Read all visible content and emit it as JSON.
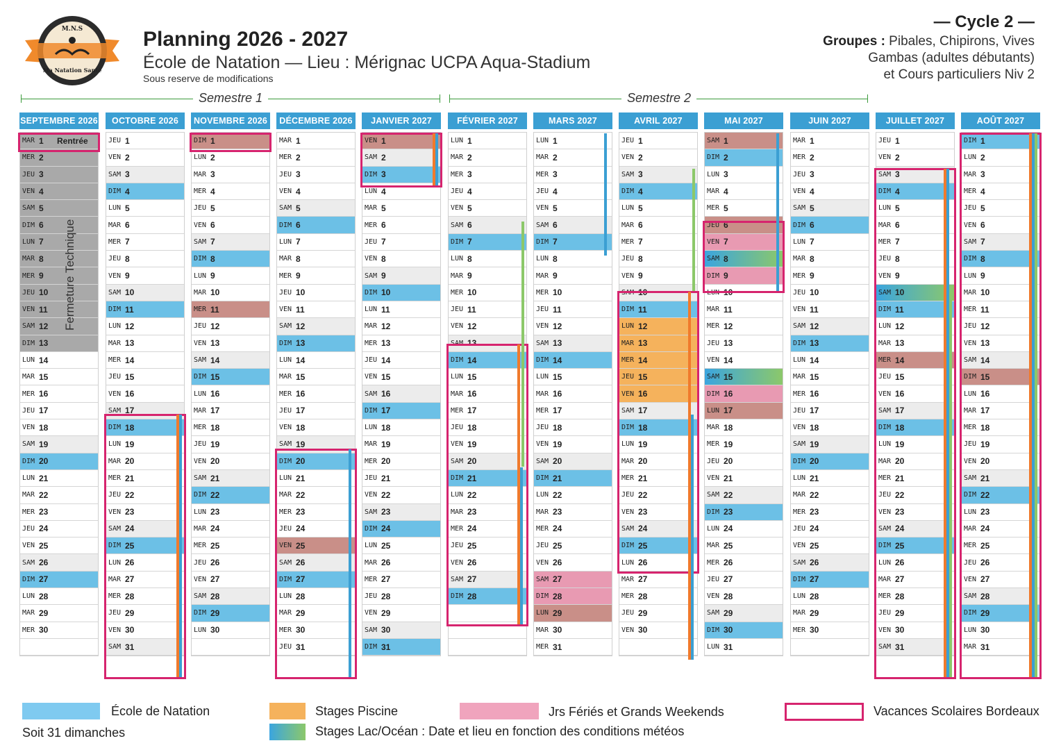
{
  "header": {
    "title": "Planning 2026 - 2027",
    "subtitle": "École de Natation — Lieu : Mérignac UCPA Aqua-Stadium",
    "note": "Sous reserve de modifications",
    "cycle": "— Cycle 2 —",
    "groups_label": "Groupes :",
    "groups_line1": " Pibales, Chipirons, Vives",
    "groups_line2": "Gambas (adultes débutants)",
    "groups_line3": "et Cours particuliers Niv 2"
  },
  "logo": {
    "text_top": "M.N.S",
    "text_arc": "Ma Natation Santé"
  },
  "semesters": [
    "Semestre 1",
    "Semestre 2"
  ],
  "closure_label": "Fermeture Technique",
  "months": [
    {
      "name": "SEPTEMBRE 2026",
      "start": 2,
      "days": 30,
      "extras": {
        "1": "Rentrée"
      }
    },
    {
      "name": "OCTOBRE 2026",
      "start": 4,
      "days": 31
    },
    {
      "name": "NOVEMBRE 2026",
      "start": 0,
      "days": 30
    },
    {
      "name": "DÉCEMBRE 2026",
      "start": 2,
      "days": 31
    },
    {
      "name": "JANVIER 2027",
      "start": 5,
      "days": 31
    },
    {
      "name": "FÉVRIER 2027",
      "start": 1,
      "days": 28
    },
    {
      "name": "MARS 2027",
      "start": 1,
      "days": 31
    },
    {
      "name": "AVRIL 2027",
      "start": 4,
      "days": 30
    },
    {
      "name": "MAI 2027",
      "start": 6,
      "days": 31
    },
    {
      "name": "JUIN 2027",
      "start": 2,
      "days": 30
    },
    {
      "name": "JUILLET 2027",
      "start": 4,
      "days": 31
    },
    {
      "name": "AOÛT 2027",
      "start": 0,
      "days": 31
    }
  ],
  "day_abbr": [
    "DIM",
    "LUN",
    "MAR",
    "MER",
    "JEU",
    "VEN",
    "SAM"
  ],
  "legend": {
    "school": "École de Natation",
    "pool": "Stages Piscine",
    "holidays": "Jrs Fériés et Grands Weekends",
    "vacation": "Vacances Scolaires Bordeaux",
    "sundays": "Soit 31 dimanches",
    "lake": "Stages Lac/Océan : Date et lieu en fonction des conditions météos"
  },
  "colors": {
    "school": "#6cc0e6",
    "pool": "#f5b25c",
    "holiday": "#e89ab2",
    "vacation": "#d6246e",
    "semester_line": "#3a9a3a"
  }
}
